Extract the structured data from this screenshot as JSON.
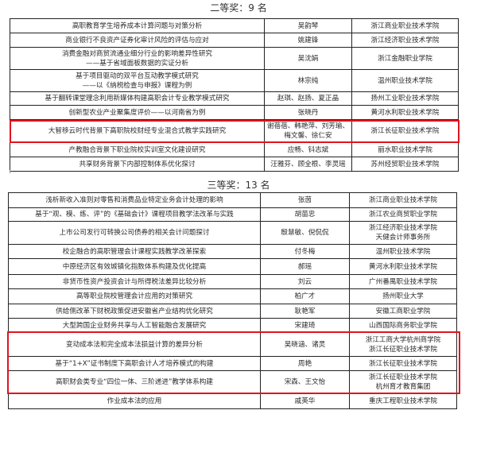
{
  "second_prize": {
    "title": "二等奖：9 名",
    "rows": [
      {
        "topic": "高职教育学生培养成本计算问题与对策分析",
        "authors": "吴韵琴",
        "school": "浙江商业职业技术学院"
      },
      {
        "topic": "商业银行不良资产证券化审计风险的评估与应对",
        "authors": "姚建锋",
        "school": "浙江经济职业技术学院"
      },
      {
        "topic": "消费金融对商贸流通业细分行业的影响差异性研究\n——基于省域面板数据的实证分析",
        "authors": "吴沈娟",
        "school": "浙江金融职业学院"
      },
      {
        "topic": "基于项目驱动的双平台互动教学模式研究\n——以《纳税检查与申报》课程为例",
        "authors": "林宗纯",
        "school": "温州职业技术学院"
      },
      {
        "topic": "基于翻转课堂理念利用新媒体构建高职会计专业教学模式研究",
        "authors": "赵琪、赵扬、夏正晶",
        "school": "扬州工业职业技术学院"
      },
      {
        "topic": "创新型农业产业聚集度评价——以河南省为例",
        "authors": "张晓丹",
        "school": "黄河水利职业技术学院"
      },
      {
        "topic": "大智移云时代背景下高职院校财经专业混合式教学实践研究",
        "authors": "谢蓓蓓、韩艳萍、刘芳瑜、\n梅文馨、徐仁安",
        "school": "浙江长征职业技术学院",
        "highlighted": true
      },
      {
        "topic": "产教融合背景下职业院校实训室文化建设研究",
        "authors": "应畅、钭志斌",
        "school": "丽水职业技术学院"
      },
      {
        "topic": "共享财务背景下内部控制体系优化探讨",
        "authors": "汪雅芬、顾全根、李灵瑶",
        "school": "苏州经贸职业技术学院"
      }
    ]
  },
  "third_prize": {
    "title": "三等奖：13 名",
    "rows": [
      {
        "topic": "浅析新收入准则对零售和消费品业特定业务会计处理的影响",
        "authors": "张茵",
        "school": "浙江商业职业技术学院"
      },
      {
        "topic": "基于“观、模、练、评”的《基础会计》课程项目教学法改革与实践",
        "authors": "胡苗忠",
        "school": "浙江农业商贸职业学院"
      },
      {
        "topic": "上市公司发行可转换公司债券的相关会计问题探讨",
        "authors": "殷慧敏、倪侃侃",
        "school": "浙江经济职业技术学院\n天健会计师事务所"
      },
      {
        "topic": "校企融合的高职管理会计课程实践教学改革探索",
        "authors": "付冬梅",
        "school": "温州职业技术学院"
      },
      {
        "topic": "中原经济区有效城镇化指数体系构建及优化提高",
        "authors": "郝瑶",
        "school": "黄河水利职业技术学院"
      },
      {
        "topic": "非货币性资产投资会计与所得税法差异比较分析",
        "authors": "刘云",
        "school": "广州番禺职业技术学院"
      },
      {
        "topic": "高等职业院校管理会计应用的对策研究",
        "authors": "柏广才",
        "school": "扬州职业大学"
      },
      {
        "topic": "供给侧改革下财税政策促进安徽省产业结构优化研究",
        "authors": "耿艳军",
        "school": "安徽工商职业学院"
      },
      {
        "topic": "大型跨国企业财务共享与人工智能融合发展研究",
        "authors": "宋建琦",
        "school": "山西国际商务职业学院"
      },
      {
        "topic": "变动成本法和完全成本法损益计算的差异分析",
        "authors": "吴晓涵、诸灵",
        "school": "浙江工商大学杭州商学院\n浙江长征职业技术学院",
        "highlighted": true
      },
      {
        "topic": "基于“1+X”证书制度下高职会计人才培养模式的构建",
        "authors": "周艳",
        "school": "浙江长征职业技术学院",
        "highlighted": true
      },
      {
        "topic": "高职财会类专业“四位一体、三阶递进”教学体系构建",
        "authors": "宋森、王文怡",
        "school": "浙江长征职业技术学院\n杭州育才教育集团",
        "highlighted": true
      },
      {
        "topic": "作业成本法的应用",
        "authors": "戚英华",
        "school": "重庆工程职业技术学院"
      }
    ]
  },
  "highlight_color": "#e0141e"
}
